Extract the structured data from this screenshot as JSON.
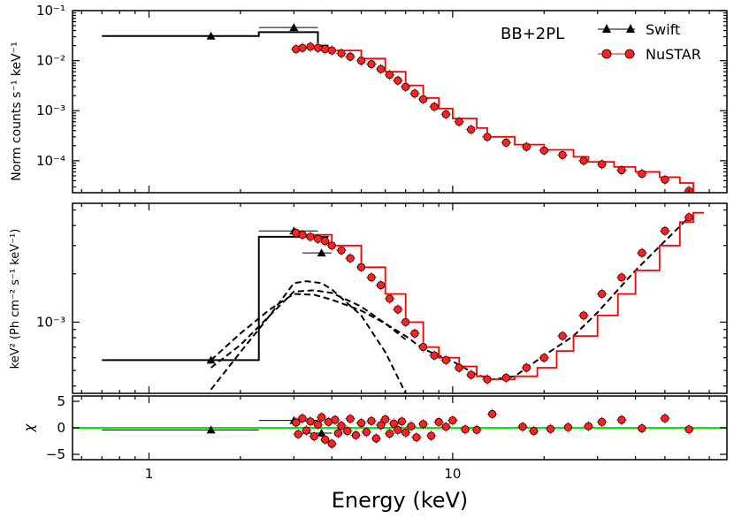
{
  "figure": {
    "annotation": "BB+2PL",
    "xlabel": "Energy (keV)",
    "xticks": [
      {
        "v": 1,
        "label": "1"
      },
      {
        "v": 10,
        "label": "10"
      }
    ],
    "xlim": [
      0.56,
      80
    ]
  },
  "legend": {
    "placement": "top-right",
    "entries": [
      {
        "name": "Swift",
        "marker": "triangle",
        "color": "#000000"
      },
      {
        "name": "NuSTAR",
        "marker": "circle",
        "color": "#ff0000"
      }
    ]
  },
  "chart_data": [
    {
      "panel": "top",
      "type": "scatter",
      "ylabel": "Norm counts s⁻¹ keV⁻¹",
      "yscale": "log",
      "ylim": [
        2.3e-05,
        0.1
      ],
      "yticks": [
        {
          "v": 0.1,
          "label": "10⁻¹"
        },
        {
          "v": 0.01,
          "label": "10⁻²"
        },
        {
          "v": 0.001,
          "label": "10⁻³"
        },
        {
          "v": 0.0001,
          "label": "10⁻⁴"
        }
      ],
      "series": [
        {
          "name": "Swift",
          "marker": "triangle",
          "color": "#000000",
          "points": [
            [
              1.6,
              0.031,
              0.7,
              2.3
            ],
            [
              3.0,
              0.046,
              2.3,
              3.6
            ]
          ]
        },
        {
          "name": "NuSTAR",
          "marker": "circle",
          "color": "#ff0000",
          "points": [
            [
              3.05,
              0.017
            ],
            [
              3.2,
              0.018
            ],
            [
              3.4,
              0.019
            ],
            [
              3.6,
              0.018
            ],
            [
              3.8,
              0.017
            ],
            [
              4.0,
              0.016
            ],
            [
              4.3,
              0.014
            ],
            [
              4.6,
              0.012
            ],
            [
              5.0,
              0.01
            ],
            [
              5.4,
              0.0085
            ],
            [
              5.8,
              0.0068
            ],
            [
              6.2,
              0.0052
            ],
            [
              6.6,
              0.004
            ],
            [
              7.0,
              0.003
            ],
            [
              7.5,
              0.0022
            ],
            [
              8.0,
              0.0017
            ],
            [
              8.7,
              0.0012
            ],
            [
              9.5,
              0.00085
            ],
            [
              10.5,
              0.0006
            ],
            [
              11.5,
              0.00042
            ],
            [
              13.0,
              0.0003
            ],
            [
              15.0,
              0.00023
            ],
            [
              17.5,
              0.00019
            ],
            [
              20.0,
              0.00016
            ],
            [
              23.0,
              0.00013
            ],
            [
              27.0,
              0.0001
            ],
            [
              31.0,
              8.5e-05
            ],
            [
              36.0,
              6.5e-05
            ],
            [
              42.0,
              5.5e-05
            ],
            [
              50.0,
              4.2e-05
            ],
            [
              60.0,
              2.5e-05
            ]
          ]
        }
      ],
      "models": [
        {
          "name": "Swift",
          "color": "#000000",
          "steps": [
            [
              0.7,
              0.031
            ],
            [
              2.3,
              0.037
            ],
            [
              3.0,
              0.037
            ],
            [
              3.6,
              0.02
            ]
          ]
        },
        {
          "name": "NuSTAR",
          "color": "#ff0000",
          "steps": [
            [
              3.0,
              0.018
            ],
            [
              4.0,
              0.016
            ],
            [
              5.0,
              0.011
            ],
            [
              6.0,
              0.006
            ],
            [
              7.0,
              0.0032
            ],
            [
              8.0,
              0.0018
            ],
            [
              9.0,
              0.0011
            ],
            [
              10.0,
              0.0007
            ],
            [
              12.0,
              0.00045
            ],
            [
              13.0,
              0.0003
            ],
            [
              16.0,
              0.00021
            ],
            [
              20.0,
              0.000165
            ],
            [
              25.0,
              0.00012
            ],
            [
              28.0,
              9.5e-05
            ],
            [
              34.0,
              7.5e-05
            ],
            [
              40.0,
              6e-05
            ],
            [
              48.0,
              4.7e-05
            ],
            [
              56.0,
              3.6e-05
            ],
            [
              62.0,
              2.2e-05
            ]
          ]
        }
      ]
    },
    {
      "panel": "middle",
      "type": "scatter",
      "ylabel": "keV² (Ph cm⁻² s⁻¹ keV⁻¹)",
      "yscale": "log",
      "ylim": [
        0.00036,
        0.0055
      ],
      "yticks": [
        {
          "v": 0.001,
          "label": "10⁻³"
        }
      ],
      "series": [
        {
          "name": "Swift",
          "marker": "triangle",
          "color": "#000000",
          "points": [
            [
              1.6,
              0.00058,
              0.7,
              2.3
            ],
            [
              3.0,
              0.0037,
              2.3,
              3.6
            ],
            [
              3.7,
              0.0027,
              3.2,
              4.0
            ]
          ]
        },
        {
          "name": "NuSTAR",
          "marker": "circle",
          "color": "#ff0000",
          "points": [
            [
              3.05,
              0.0036
            ],
            [
              3.2,
              0.0035
            ],
            [
              3.4,
              0.0034
            ],
            [
              3.6,
              0.0033
            ],
            [
              3.8,
              0.0032
            ],
            [
              4.0,
              0.003
            ],
            [
              4.3,
              0.0028
            ],
            [
              4.6,
              0.0025
            ],
            [
              5.0,
              0.0022
            ],
            [
              5.4,
              0.0019
            ],
            [
              5.8,
              0.0017
            ],
            [
              6.2,
              0.0014
            ],
            [
              6.6,
              0.0012
            ],
            [
              7.0,
              0.001
            ],
            [
              7.5,
              0.00085
            ],
            [
              8.0,
              0.0007
            ],
            [
              8.7,
              0.00062
            ],
            [
              9.5,
              0.00058
            ],
            [
              10.5,
              0.00052
            ],
            [
              11.5,
              0.00047
            ],
            [
              13.0,
              0.00044
            ],
            [
              15.0,
              0.00045
            ],
            [
              17.5,
              0.00052
            ],
            [
              20.0,
              0.0006
            ],
            [
              23.0,
              0.00082
            ],
            [
              27.0,
              0.0011
            ],
            [
              31.0,
              0.0015
            ],
            [
              36.0,
              0.0019
            ],
            [
              42.0,
              0.0027
            ],
            [
              50.0,
              0.0037
            ],
            [
              60.0,
              0.0045
            ]
          ]
        }
      ],
      "models": [
        {
          "name": "Swift",
          "color": "#000000",
          "steps": [
            [
              0.7,
              0.00058
            ],
            [
              2.3,
              0.0034
            ],
            [
              3.6,
              0.0034
            ]
          ]
        },
        {
          "name": "NuSTAR",
          "color": "#ff0000",
          "steps": [
            [
              3.0,
              0.0035
            ],
            [
              4.0,
              0.003
            ],
            [
              5.0,
              0.0022
            ],
            [
              6.0,
              0.0015
            ],
            [
              7.0,
              0.001
            ],
            [
              8.0,
              0.0007
            ],
            [
              9.0,
              0.0006
            ],
            [
              10.5,
              0.00053
            ],
            [
              12.0,
              0.00046
            ],
            [
              13.0,
              0.00044
            ],
            [
              16.0,
              0.00046
            ],
            [
              19.0,
              0.00052
            ],
            [
              22.0,
              0.00066
            ],
            [
              25.0,
              0.00082
            ],
            [
              30.0,
              0.0011
            ],
            [
              35.0,
              0.0015
            ],
            [
              40.0,
              0.0021
            ],
            [
              48.0,
              0.003
            ],
            [
              56.0,
              0.0042
            ],
            [
              62.0,
              0.0048
            ]
          ]
        }
      ],
      "components": [
        {
          "name": "total",
          "color": "#000000",
          "style": "dashed",
          "points": [
            [
              1.6,
              0.00052
            ],
            [
              2.0,
              0.00072
            ],
            [
              2.5,
              0.0011
            ],
            [
              3.0,
              0.00155
            ],
            [
              3.5,
              0.00158
            ],
            [
              4.0,
              0.00152
            ],
            [
              5.0,
              0.00125
            ],
            [
              6.0,
              0.00098
            ],
            [
              7.0,
              0.00082
            ],
            [
              8.0,
              0.00068
            ],
            [
              10.0,
              0.00057
            ],
            [
              12.0,
              0.00047
            ],
            [
              13.5,
              0.00044
            ],
            [
              16.0,
              0.00046
            ],
            [
              20.0,
              0.00062
            ],
            [
              25.0,
              0.00082
            ],
            [
              30.0,
              0.00115
            ],
            [
              40.0,
              0.0021
            ],
            [
              50.0,
              0.0032
            ],
            [
              60.0,
              0.0045
            ]
          ]
        },
        {
          "name": "blackbody",
          "color": "#000000",
          "style": "dashed",
          "points": [
            [
              1.6,
              0.00038
            ],
            [
              2.0,
              0.00065
            ],
            [
              2.5,
              0.0011
            ],
            [
              3.0,
              0.00175
            ],
            [
              3.3,
              0.0018
            ],
            [
              3.7,
              0.00175
            ],
            [
              4.0,
              0.0016
            ],
            [
              5.0,
              0.0011
            ],
            [
              6.0,
              0.00065
            ],
            [
              6.5,
              0.00048
            ],
            [
              7.0,
              0.00036
            ]
          ]
        },
        {
          "name": "power-law",
          "color": "#000000",
          "style": "dashed",
          "points": [
            [
              1.6,
              0.00058
            ],
            [
              2.0,
              0.00085
            ],
            [
              2.5,
              0.0012
            ],
            [
              3.0,
              0.0015
            ],
            [
              3.5,
              0.00148
            ],
            [
              4.0,
              0.00138
            ],
            [
              5.0,
              0.00118
            ],
            [
              6.0,
              0.00098
            ],
            [
              7.0,
              0.00078
            ]
          ]
        }
      ]
    },
    {
      "panel": "bottom",
      "type": "scatter",
      "ylabel": "χ",
      "yscale": "linear",
      "ylim": [
        -6,
        6
      ],
      "yticks": [
        {
          "v": 5,
          "label": "5"
        },
        {
          "v": 0,
          "label": "0"
        },
        {
          "v": -5,
          "label": "−5"
        }
      ],
      "reference_line": {
        "y": 0,
        "color": "#00ee00"
      },
      "series": [
        {
          "name": "Swift",
          "marker": "triangle",
          "color": "#000000",
          "points": [
            [
              1.6,
              -0.4,
              0.7,
              2.3
            ],
            [
              3.0,
              1.4,
              2.3,
              3.6
            ],
            [
              3.7,
              -1.0,
              3.2,
              4.0
            ]
          ]
        },
        {
          "name": "NuSTAR",
          "marker": "circle",
          "color": "#ff0000",
          "points": [
            [
              3.05,
              1.0
            ],
            [
              3.1,
              -1.2
            ],
            [
              3.2,
              1.8
            ],
            [
              3.3,
              -0.5
            ],
            [
              3.4,
              1.2
            ],
            [
              3.5,
              -1.6
            ],
            [
              3.6,
              0.6
            ],
            [
              3.7,
              2.0
            ],
            [
              3.8,
              -2.2
            ],
            [
              3.9,
              1.1
            ],
            [
              4.0,
              -3.0
            ],
            [
              4.1,
              1.5
            ],
            [
              4.2,
              -1.0
            ],
            [
              4.3,
              0.4
            ],
            [
              4.5,
              -0.6
            ],
            [
              4.6,
              1.7
            ],
            [
              4.8,
              -1.4
            ],
            [
              5.0,
              0.9
            ],
            [
              5.2,
              -0.8
            ],
            [
              5.4,
              1.3
            ],
            [
              5.6,
              -2.0
            ],
            [
              5.8,
              0.5
            ],
            [
              6.0,
              1.6
            ],
            [
              6.2,
              -1.1
            ],
            [
              6.4,
              0.8
            ],
            [
              6.6,
              -0.4
            ],
            [
              6.8,
              1.2
            ],
            [
              7.0,
              -0.9
            ],
            [
              7.3,
              0.3
            ],
            [
              7.6,
              -1.8
            ],
            [
              8.0,
              0.7
            ],
            [
              8.5,
              -1.5
            ],
            [
              9.0,
              1.1
            ],
            [
              9.5,
              0.2
            ],
            [
              10.0,
              1.4
            ],
            [
              11.0,
              -0.3
            ],
            [
              12.0,
              -0.4
            ],
            [
              13.5,
              2.6
            ],
            [
              17.0,
              0.2
            ],
            [
              18.5,
              -0.6
            ],
            [
              21.0,
              -0.2
            ],
            [
              24.0,
              0.1
            ],
            [
              28.0,
              0.3
            ],
            [
              31.0,
              1.1
            ],
            [
              36.0,
              1.5
            ],
            [
              42.0,
              -0.1
            ],
            [
              50.0,
              1.8
            ],
            [
              60.0,
              -0.3
            ]
          ]
        }
      ]
    }
  ]
}
